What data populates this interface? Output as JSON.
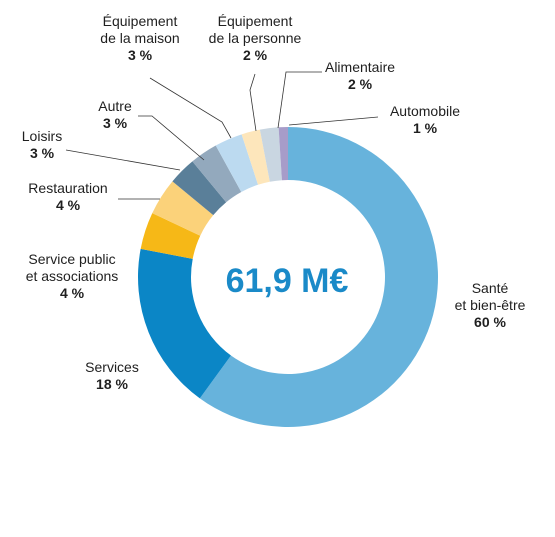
{
  "chart_data": {
    "type": "pie",
    "center_label": "61,9 M€",
    "slices": [
      {
        "name": "Santé et bien-être",
        "lines": [
          "Santé",
          "et bien-être"
        ],
        "value": 60,
        "value_label": "60 %",
        "color": "#67b3dc"
      },
      {
        "name": "Services",
        "lines": [
          "Services"
        ],
        "value": 18,
        "value_label": "18 %",
        "color": "#0b86c6"
      },
      {
        "name": "Service public et associations",
        "lines": [
          "Service public",
          "et associations"
        ],
        "value": 4,
        "value_label": "4 %",
        "color": "#f6b817"
      },
      {
        "name": "Restauration",
        "lines": [
          "Restauration"
        ],
        "value": 4,
        "value_label": "4 %",
        "color": "#fbd27a"
      },
      {
        "name": "Loisirs",
        "lines": [
          "Loisirs"
        ],
        "value": 3,
        "value_label": "3 %",
        "color": "#5a7f99"
      },
      {
        "name": "Autre",
        "lines": [
          "Autre"
        ],
        "value": 3,
        "value_label": "3 %",
        "color": "#93a9bd"
      },
      {
        "name": "Équipement de la maison",
        "lines": [
          "Équipement",
          "de la maison"
        ],
        "value": 3,
        "value_label": "3 %",
        "color": "#bcdaf0"
      },
      {
        "name": "Équipement de la personne",
        "lines": [
          "Équipement",
          "de la personne"
        ],
        "value": 2,
        "value_label": "2 %",
        "color": "#fde6bb"
      },
      {
        "name": "Alimentaire",
        "lines": [
          "Alimentaire"
        ],
        "value": 2,
        "value_label": "2 %",
        "color": "#c9d6e1"
      },
      {
        "name": "Automobile",
        "lines": [
          "Automobile"
        ],
        "value": 1,
        "value_label": "1 %",
        "color": "#a79cc9"
      }
    ]
  }
}
